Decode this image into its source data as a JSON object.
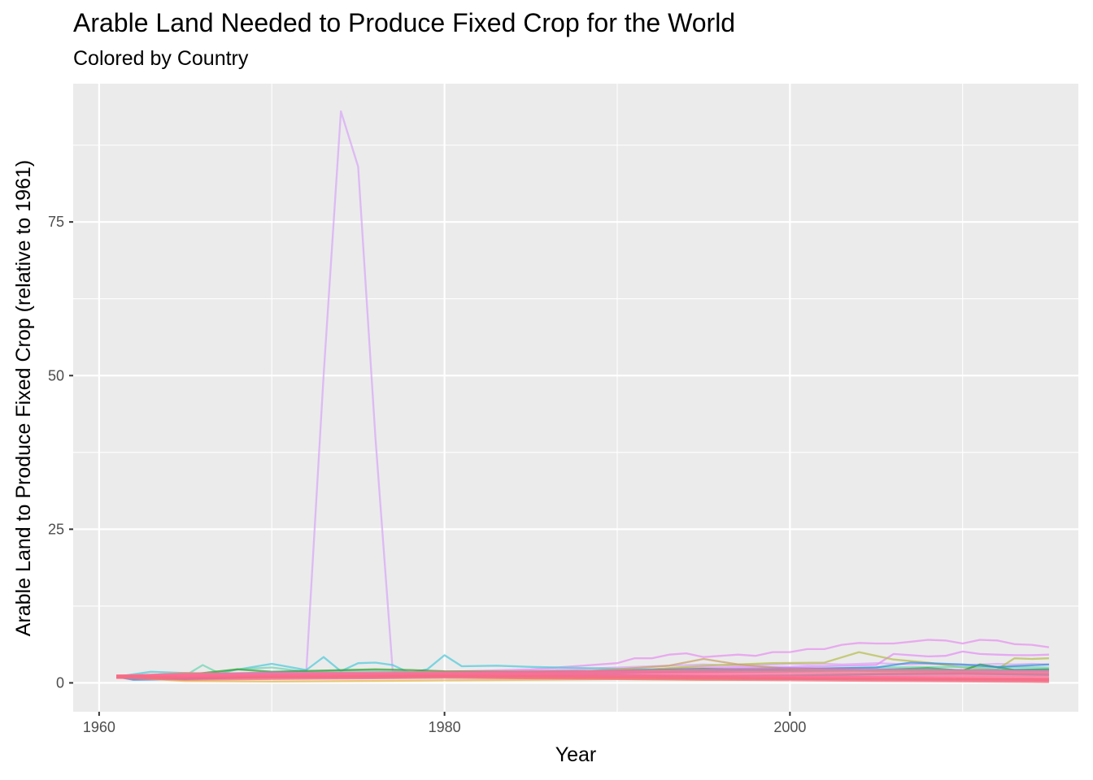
{
  "chart_data": {
    "type": "line",
    "title": "Arable Land Needed to Produce Fixed Crop for the World",
    "subtitle": "Colored by Country",
    "xlabel": "Year",
    "ylabel": "Arable Land to Produce Fixed Crop (relative to 1961)",
    "xlim": [
      1958.5,
      2016.7
    ],
    "ylim": [
      -4.7,
      97.5
    ],
    "x_ticks": [
      "1960",
      "1980",
      "2000"
    ],
    "y_ticks": [
      "0",
      "25",
      "50",
      "75"
    ],
    "grid": true,
    "legend": "none",
    "note_series": "Many overlapping country series; values estimated from gridlines. Unnamed in the figure.",
    "series": [
      {
        "color": "#d7a6f5",
        "x": [
          1961,
          1962,
          1963,
          1964,
          1965,
          1966,
          1967,
          1968,
          1969,
          1970,
          1971,
          1972,
          1973,
          1974,
          1975,
          1976,
          1977,
          1978,
          1979,
          1980,
          1981,
          1982,
          1983,
          1984,
          1985,
          1986,
          1987,
          1988,
          1989,
          1990,
          1991,
          1992,
          1993,
          1994,
          1995,
          1996,
          1997,
          1998,
          1999,
          2000,
          2001,
          2002,
          2003,
          2004,
          2005,
          2006,
          2007,
          2008,
          2009,
          2010,
          2011,
          2012,
          2013,
          2014,
          2015
        ],
        "y": [
          1,
          1.1,
          1.2,
          1.3,
          1.2,
          1.4,
          1.3,
          1.5,
          1.6,
          1.7,
          1.8,
          2.0,
          50,
          93,
          84,
          40,
          1.9,
          1.8,
          1.7,
          1.8,
          1.7,
          1.8,
          1.8,
          1.9,
          2.0,
          2.1,
          2.2,
          2.3,
          2.4,
          2.5,
          2.6,
          2.7,
          2.8,
          2.9,
          3.0,
          2.9,
          2.8,
          2.9,
          3.0,
          3.1,
          3.0,
          3.1,
          3.0,
          3.1,
          3.2,
          3.1,
          3.0,
          3.1,
          3.0,
          2.9,
          3.0,
          3.1,
          3.0,
          3.1,
          3.0
        ]
      },
      {
        "color": "#e690f0",
        "x": [
          1961,
          1965,
          1970,
          1975,
          1980,
          1985,
          1988,
          1990,
          1991,
          1992,
          1993,
          1994,
          1995,
          1996,
          1997,
          1998,
          1999,
          2000,
          2001,
          2002,
          2003,
          2004,
          2005,
          2006,
          2007,
          2008,
          2009,
          2010,
          2011,
          2012,
          2013,
          2014,
          2015
        ],
        "y": [
          1,
          1.1,
          1.3,
          1.5,
          1.8,
          2.2,
          2.8,
          3.2,
          4.0,
          4.0,
          4.6,
          4.8,
          4.2,
          4.4,
          4.6,
          4.4,
          5.0,
          5.0,
          5.5,
          5.5,
          6.2,
          6.5,
          6.4,
          6.4,
          6.7,
          7.0,
          6.9,
          6.4,
          7.0,
          6.9,
          6.3,
          6.2,
          5.8
        ]
      },
      {
        "color": "#e38ef5",
        "x": [
          1961,
          1970,
          1980,
          1990,
          1995,
          2000,
          2005,
          2006,
          2008,
          2009,
          2010,
          2011,
          2012,
          2013,
          2014,
          2015
        ],
        "y": [
          1,
          1.3,
          1.6,
          2.0,
          2.5,
          2.6,
          2.9,
          4.7,
          4.3,
          4.4,
          5.1,
          4.7,
          4.6,
          4.5,
          4.5,
          4.6
        ]
      },
      {
        "color": "#b5bd4f",
        "x": [
          1961,
          1970,
          1980,
          1990,
          1995,
          1999,
          2002,
          2004,
          2006,
          2008,
          2010,
          2012,
          2013,
          2014,
          2015
        ],
        "y": [
          1,
          1.2,
          1.5,
          1.8,
          2.8,
          3.2,
          3.3,
          5.0,
          3.8,
          3.3,
          2.5,
          2.2,
          4.0,
          3.9,
          4.0
        ]
      },
      {
        "color": "#4fc9d9",
        "x": [
          1961,
          1963,
          1966,
          1967,
          1970,
          1972,
          1973,
          1974,
          1975,
          1976,
          1977,
          1978,
          1979,
          1980,
          1981,
          1983,
          1985,
          1990,
          1995,
          2000,
          2005,
          2010,
          2015
        ],
        "y": [
          1,
          1.8,
          1.5,
          1.7,
          3.1,
          2.1,
          4.2,
          1.9,
          3.2,
          3.3,
          2.9,
          1.6,
          2.2,
          4.5,
          2.7,
          2.8,
          2.6,
          2.3,
          2.0,
          1.9,
          2.0,
          2.1,
          2.2
        ]
      },
      {
        "color": "#6cd4b3",
        "x": [
          1961,
          1962,
          1965,
          1966,
          1967,
          1968,
          1970,
          1972,
          1975,
          1980,
          1985,
          1990,
          1995,
          2000,
          2005,
          2010,
          2015
        ],
        "y": [
          1,
          0.6,
          1.2,
          2.9,
          1.5,
          2.2,
          2.5,
          1.8,
          2.0,
          1.7,
          1.9,
          2.0,
          2.1,
          2.3,
          2.5,
          2.6,
          2.5
        ]
      },
      {
        "color": "#33a02c",
        "x": [
          1961,
          1965,
          1968,
          1970,
          1973,
          1976,
          1978,
          1980,
          1985,
          1990,
          1995,
          2000,
          2005,
          2008,
          2010,
          2011,
          2013,
          2015
        ],
        "y": [
          1,
          1.3,
          2.2,
          1.8,
          2.0,
          2.2,
          2.1,
          1.9,
          1.8,
          2.0,
          2.3,
          2.0,
          2.1,
          2.4,
          2.0,
          3.0,
          2.1,
          2.2
        ]
      },
      {
        "color": "#3a8fd9",
        "x": [
          1961,
          1962,
          1965,
          1970,
          1975,
          1980,
          1985,
          1990,
          1995,
          2000,
          2005,
          2007,
          2010,
          2012,
          2015
        ],
        "y": [
          1,
          0.5,
          0.6,
          1.0,
          1.2,
          1.3,
          1.4,
          1.6,
          1.9,
          2.2,
          2.5,
          3.3,
          3.0,
          2.6,
          3.0
        ]
      },
      {
        "color": "#c9a06a",
        "x": [
          1961,
          1965,
          1970,
          1975,
          1980,
          1985,
          1990,
          1993,
          1995,
          1997,
          2000,
          2005,
          2010,
          2015
        ],
        "y": [
          1,
          1.6,
          1.4,
          1.3,
          1.2,
          1.4,
          2.2,
          2.8,
          3.9,
          3.0,
          2.3,
          1.9,
          1.8,
          1.9
        ]
      },
      {
        "color": "#e8b84a",
        "x": [
          1961,
          1965,
          1970,
          1975,
          1980,
          1985,
          1990,
          1995,
          2000,
          2005,
          2010,
          2015
        ],
        "y": [
          1,
          0.3,
          0.2,
          0.3,
          0.4,
          0.5,
          0.6,
          0.5,
          0.6,
          0.7,
          0.6,
          0.7
        ]
      },
      {
        "color": "#9a82e8",
        "x": [
          1961,
          1965,
          1970,
          1975,
          1980,
          1985,
          1990,
          1995,
          2000,
          2005,
          2010,
          2015
        ],
        "y": [
          1,
          1.4,
          1.7,
          1.6,
          1.5,
          1.8,
          2.0,
          2.2,
          2.4,
          2.2,
          2.1,
          2.0
        ]
      },
      {
        "color": "#00b3a0",
        "x": [
          1961,
          1965,
          1970,
          1975,
          1980,
          1985,
          1990,
          1995,
          2000,
          2005,
          2010,
          2015
        ],
        "y": [
          1,
          0.8,
          0.9,
          1.0,
          1.1,
          1.2,
          1.3,
          1.1,
          1.2,
          1.4,
          1.5,
          1.3
        ]
      },
      {
        "color": "#7fb3e6",
        "x": [
          1961,
          1965,
          1970,
          1975,
          1980,
          1985,
          1990,
          1995,
          2000,
          2005,
          2010,
          2015
        ],
        "y": [
          1,
          1.1,
          1.3,
          1.5,
          1.6,
          1.5,
          1.7,
          1.8,
          1.9,
          2.0,
          1.9,
          1.8
        ]
      },
      {
        "color": "#f07a8c",
        "x": [
          1961,
          1965,
          1970,
          1975,
          1980,
          1985,
          1990,
          1995,
          2000,
          2005,
          2010,
          2015
        ],
        "y": [
          1,
          1.3,
          1.4,
          1.5,
          1.6,
          1.7,
          1.8,
          1.9,
          2.0,
          1.9,
          1.8,
          1.7
        ]
      },
      {
        "color": "#fa6b9a",
        "x": [
          1961,
          1965,
          1970,
          1975,
          1980,
          1985,
          1990,
          1995,
          2000,
          2005,
          2010,
          2015
        ],
        "y": [
          1,
          1.1,
          1.2,
          1.3,
          1.4,
          1.5,
          1.6,
          1.5,
          1.4,
          1.3,
          1.4,
          1.3
        ]
      },
      {
        "color": "#f55ca8",
        "x": [
          1961,
          1965,
          1970,
          1975,
          1980,
          1985,
          1990,
          1995,
          2000,
          2005,
          2010,
          2015
        ],
        "y": [
          1,
          0.9,
          1.0,
          1.0,
          1.1,
          1.0,
          1.0,
          0.9,
          0.8,
          0.7,
          0.6,
          0.5
        ]
      },
      {
        "color": "#ff6f91",
        "x": [
          1961,
          1965,
          1970,
          1975,
          1980,
          1985,
          1990,
          1995,
          2000,
          2005,
          2010,
          2015
        ],
        "y": [
          1,
          1.2,
          1.1,
          1.2,
          1.3,
          1.2,
          1.1,
          1.0,
          0.9,
          0.8,
          0.8,
          0.7
        ]
      },
      {
        "color": "#f26d7d",
        "x": [
          1961,
          1965,
          1970,
          1975,
          1980,
          1985,
          1990,
          1995,
          2000,
          2005,
          2010,
          2015
        ],
        "y": [
          1,
          0.7,
          0.8,
          0.9,
          1.0,
          0.9,
          0.8,
          0.7,
          0.6,
          0.5,
          0.4,
          0.3
        ]
      }
    ]
  }
}
